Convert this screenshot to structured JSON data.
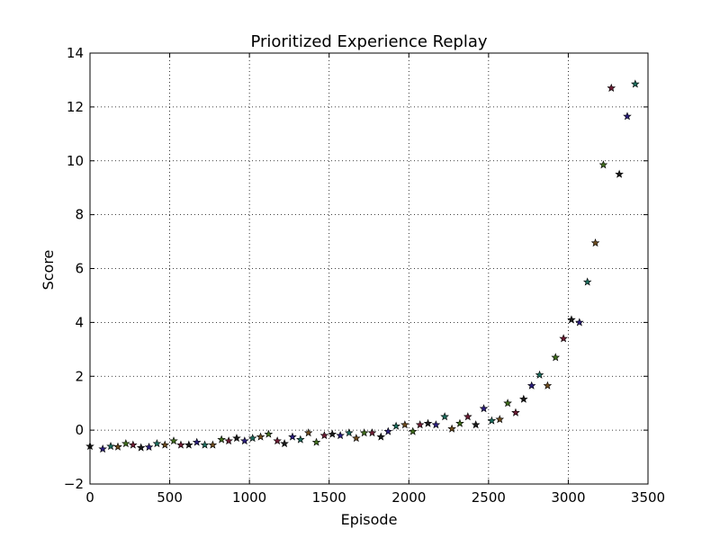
{
  "chart_data": {
    "type": "scatter",
    "title": "Prioritized Experience Replay",
    "xlabel": "Episode",
    "ylabel": "Score",
    "xlim": [
      0,
      3500
    ],
    "ylim": [
      -2,
      14
    ],
    "xticks": [
      0,
      500,
      1000,
      1500,
      2000,
      2500,
      3000,
      3500
    ],
    "yticks": [
      -2,
      0,
      2,
      4,
      6,
      8,
      10,
      12,
      14
    ],
    "xtick_labels": [
      "0",
      "500",
      "1000",
      "1500",
      "2000",
      "2500",
      "3000",
      "3500"
    ],
    "ytick_labels": [
      "−2",
      "0",
      "2",
      "4",
      "6",
      "8",
      "10",
      "12",
      "14"
    ],
    "grid": true,
    "marker": "star",
    "marker_colors": [
      "#1a1a1a",
      "#2a1d7a",
      "#1c6b5c",
      "#6b4a1e",
      "#3f6b1c",
      "#6b1c33"
    ],
    "points": [
      {
        "x": 0,
        "y": -0.6
      },
      {
        "x": 80,
        "y": -0.7
      },
      {
        "x": 130,
        "y": -0.6
      },
      {
        "x": 175,
        "y": -0.62
      },
      {
        "x": 225,
        "y": -0.5
      },
      {
        "x": 270,
        "y": -0.55
      },
      {
        "x": 320,
        "y": -0.65
      },
      {
        "x": 370,
        "y": -0.63
      },
      {
        "x": 420,
        "y": -0.5
      },
      {
        "x": 470,
        "y": -0.55
      },
      {
        "x": 525,
        "y": -0.4
      },
      {
        "x": 570,
        "y": -0.55
      },
      {
        "x": 620,
        "y": -0.55
      },
      {
        "x": 670,
        "y": -0.45
      },
      {
        "x": 720,
        "y": -0.55
      },
      {
        "x": 770,
        "y": -0.55
      },
      {
        "x": 825,
        "y": -0.35
      },
      {
        "x": 870,
        "y": -0.4
      },
      {
        "x": 920,
        "y": -0.3
      },
      {
        "x": 970,
        "y": -0.4
      },
      {
        "x": 1020,
        "y": -0.3
      },
      {
        "x": 1070,
        "y": -0.25
      },
      {
        "x": 1120,
        "y": -0.15
      },
      {
        "x": 1175,
        "y": -0.4
      },
      {
        "x": 1220,
        "y": -0.5
      },
      {
        "x": 1270,
        "y": -0.25
      },
      {
        "x": 1320,
        "y": -0.35
      },
      {
        "x": 1370,
        "y": -0.1
      },
      {
        "x": 1420,
        "y": -0.45
      },
      {
        "x": 1470,
        "y": -0.2
      },
      {
        "x": 1520,
        "y": -0.15
      },
      {
        "x": 1570,
        "y": -0.2
      },
      {
        "x": 1625,
        "y": -0.1
      },
      {
        "x": 1670,
        "y": -0.3
      },
      {
        "x": 1720,
        "y": -0.1
      },
      {
        "x": 1770,
        "y": -0.1
      },
      {
        "x": 1825,
        "y": -0.25
      },
      {
        "x": 1870,
        "y": -0.05
      },
      {
        "x": 1920,
        "y": 0.15
      },
      {
        "x": 1975,
        "y": 0.2
      },
      {
        "x": 2025,
        "y": -0.05
      },
      {
        "x": 2070,
        "y": 0.2
      },
      {
        "x": 2120,
        "y": 0.25
      },
      {
        "x": 2170,
        "y": 0.2
      },
      {
        "x": 2225,
        "y": 0.5
      },
      {
        "x": 2270,
        "y": 0.05
      },
      {
        "x": 2320,
        "y": 0.25
      },
      {
        "x": 2370,
        "y": 0.5
      },
      {
        "x": 2420,
        "y": 0.2
      },
      {
        "x": 2470,
        "y": 0.8
      },
      {
        "x": 2520,
        "y": 0.35
      },
      {
        "x": 2570,
        "y": 0.4
      },
      {
        "x": 2620,
        "y": 1.0
      },
      {
        "x": 2670,
        "y": 0.65
      },
      {
        "x": 2720,
        "y": 1.15
      },
      {
        "x": 2770,
        "y": 1.65
      },
      {
        "x": 2820,
        "y": 2.05
      },
      {
        "x": 2870,
        "y": 1.65
      },
      {
        "x": 2920,
        "y": 2.7
      },
      {
        "x": 2970,
        "y": 3.4
      },
      {
        "x": 3020,
        "y": 4.1
      },
      {
        "x": 3070,
        "y": 4.0
      },
      {
        "x": 3120,
        "y": 5.5
      },
      {
        "x": 3170,
        "y": 6.95
      },
      {
        "x": 3220,
        "y": 9.85
      },
      {
        "x": 3270,
        "y": 12.7
      },
      {
        "x": 3320,
        "y": 9.5
      },
      {
        "x": 3370,
        "y": 11.65
      },
      {
        "x": 3420,
        "y": 12.85
      }
    ]
  }
}
